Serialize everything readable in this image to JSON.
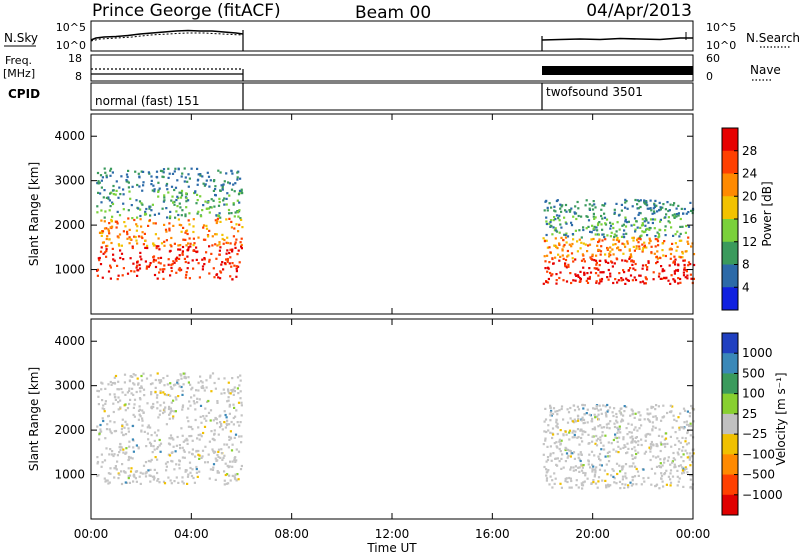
{
  "header": {
    "station": "Prince George (fitACF)",
    "beam": "Beam 00",
    "date": "04/Apr/2013"
  },
  "status_panels": {
    "nsky_label": "N.Sky",
    "nsearch_label": "N.Search",
    "noise_ticks": [
      "10^5",
      "10^0"
    ],
    "freq_label_top": "Freq.",
    "freq_label_unit": "[MHz]",
    "freq_ticks": [
      "18",
      "8"
    ],
    "nave_label": "Nave",
    "nave_ticks": [
      "60",
      "0"
    ],
    "cpid_label": "CPID",
    "cpid_segments": [
      {
        "name": "normal (fast) 151",
        "start_hour": 0.0,
        "end_hour": 6.0
      },
      {
        "name": "twofsound 3501",
        "start_hour": 18.0,
        "end_hour": 24.0
      }
    ]
  },
  "chart_data": [
    {
      "type": "heatmap",
      "name": "power",
      "ylabel": "Slant Range [km]",
      "xlabel": "",
      "ylim": [
        0,
        4500
      ],
      "yticks": [
        1000,
        2000,
        3000,
        4000
      ],
      "xlim": [
        0,
        24
      ],
      "colorbar": {
        "label": "Power [dB]",
        "ticks": [
          "28",
          "24",
          "20",
          "16",
          "12",
          "8",
          "4"
        ],
        "colors": [
          "#e60000",
          "#ff4000",
          "#ff8a00",
          "#f2c200",
          "#7ad13a",
          "#3a9a5c",
          "#2c6aa8",
          "#1020e0"
        ]
      },
      "echo_regions": [
        {
          "start_hour": 0.2,
          "end_hour": 6.0,
          "range_min": 800,
          "range_max": 3300
        },
        {
          "start_hour": 18.0,
          "end_hour": 24.0,
          "range_min": 700,
          "range_max": 2600
        }
      ]
    },
    {
      "type": "heatmap",
      "name": "velocity",
      "ylabel": "Slant Range [km]",
      "xlabel": "Time UT",
      "ylim": [
        0,
        4500
      ],
      "yticks": [
        1000,
        2000,
        3000,
        4000
      ],
      "xlim": [
        0,
        24
      ],
      "xticks": [
        "00:00",
        "04:00",
        "08:00",
        "12:00",
        "16:00",
        "20:00",
        "00:00"
      ],
      "colorbar": {
        "label": "Velocity [m s⁻¹]",
        "ticks": [
          "1000",
          "500",
          "100",
          "25",
          "−25",
          "−100",
          "−500",
          "−1000"
        ],
        "colors": [
          "#2040c0",
          "#3a88b8",
          "#3a9a5c",
          "#88d030",
          "#c0c0c0",
          "#f0c000",
          "#ff8a00",
          "#ff4000",
          "#e00000"
        ]
      },
      "echo_regions": [
        {
          "start_hour": 0.2,
          "end_hour": 6.0,
          "range_min": 800,
          "range_max": 3300
        },
        {
          "start_hour": 18.0,
          "end_hour": 24.0,
          "range_min": 700,
          "range_max": 2600
        }
      ]
    }
  ]
}
